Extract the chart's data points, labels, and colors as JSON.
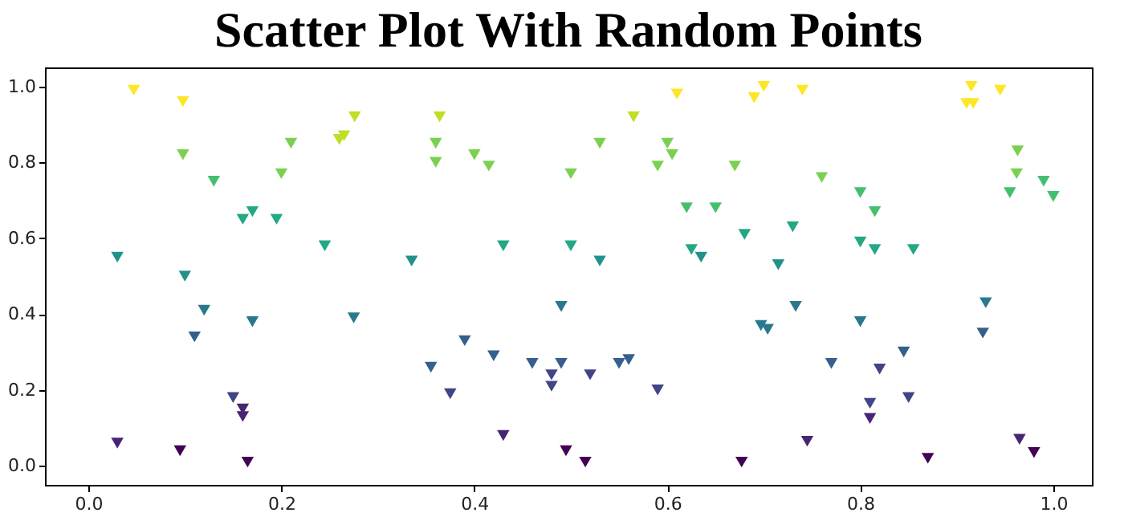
{
  "chart_data": {
    "type": "scatter",
    "title": "Scatter Plot With Random Points",
    "marker": "triangle",
    "grid": false,
    "xlim": [
      -0.045,
      1.04
    ],
    "ylim": [
      -0.05,
      1.05
    ],
    "xticks": [
      {
        "value": 0,
        "label": "0.0"
      },
      {
        "value": 0.2,
        "label": "0.2"
      },
      {
        "value": 0.4,
        "label": "0.4"
      },
      {
        "value": 0.6,
        "label": "0.6"
      },
      {
        "value": 0.8,
        "label": "0.8"
      },
      {
        "value": 1,
        "label": "1.0"
      }
    ],
    "yticks": [
      {
        "value": 0,
        "label": "0.0"
      },
      {
        "value": 0.2,
        "label": "0.2"
      },
      {
        "value": 0.4,
        "label": "0.4"
      },
      {
        "value": 0.6,
        "label": "0.6"
      },
      {
        "value": 0.8,
        "label": "0.8"
      },
      {
        "value": 1,
        "label": "1.0"
      }
    ],
    "series": [
      {
        "color": "#440154",
        "x": [
          0.095,
          0.165,
          0.495,
          0.515,
          0.677,
          0.87,
          0.98
        ],
        "values": [
          0.04,
          0.01,
          0.04,
          0.01,
          0.01,
          0.02,
          0.035
        ]
      },
      {
        "color": "#482475",
        "x": [
          0.03,
          0.16,
          0.16,
          0.43,
          0.745,
          0.81,
          0.965
        ],
        "values": [
          0.06,
          0.13,
          0.15,
          0.08,
          0.065,
          0.125,
          0.07
        ]
      },
      {
        "color": "#414487",
        "x": [
          0.15,
          0.375,
          0.48,
          0.59,
          0.81,
          0.85,
          0.48,
          0.52,
          0.82
        ],
        "values": [
          0.18,
          0.19,
          0.21,
          0.2,
          0.165,
          0.18,
          0.24,
          0.24,
          0.255
        ]
      },
      {
        "color": "#355f8d",
        "x": [
          0.355,
          0.39,
          0.42,
          0.46,
          0.49,
          0.55,
          0.56,
          0.77,
          0.845,
          0.11,
          0.927
        ],
        "values": [
          0.26,
          0.33,
          0.29,
          0.27,
          0.27,
          0.27,
          0.28,
          0.27,
          0.3,
          0.34,
          0.35
        ]
      },
      {
        "color": "#2a788e",
        "x": [
          0.12,
          0.17,
          0.275,
          0.49,
          0.697,
          0.704,
          0.733,
          0.8,
          0.93
        ],
        "values": [
          0.41,
          0.38,
          0.39,
          0.42,
          0.37,
          0.36,
          0.42,
          0.38,
          0.43
        ]
      },
      {
        "color": "#21918c",
        "x": [
          0.03,
          0.1,
          0.335,
          0.53,
          0.635,
          0.715
        ],
        "values": [
          0.55,
          0.5,
          0.54,
          0.54,
          0.55,
          0.53
        ]
      },
      {
        "color": "#22a884",
        "x": [
          0.16,
          0.17,
          0.195,
          0.245,
          0.43,
          0.5,
          0.625,
          0.68,
          0.73,
          0.8,
          0.815,
          0.855
        ],
        "values": [
          0.65,
          0.67,
          0.65,
          0.58,
          0.58,
          0.58,
          0.57,
          0.61,
          0.63,
          0.59,
          0.57,
          0.57
        ]
      },
      {
        "color": "#44bf70",
        "x": [
          0.13,
          0.62,
          0.65,
          0.815,
          0.8,
          0.955,
          1.0,
          0.99
        ],
        "values": [
          0.75,
          0.68,
          0.68,
          0.67,
          0.72,
          0.72,
          0.71,
          0.75
        ]
      },
      {
        "color": "#7ad151",
        "x": [
          0.098,
          0.2,
          0.21,
          0.36,
          0.36,
          0.4,
          0.415,
          0.5,
          0.53,
          0.6,
          0.605,
          0.59,
          0.67,
          0.76,
          0.962,
          0.963
        ],
        "values": [
          0.82,
          0.77,
          0.85,
          0.8,
          0.85,
          0.82,
          0.79,
          0.77,
          0.85,
          0.85,
          0.82,
          0.79,
          0.79,
          0.76,
          0.77,
          0.83
        ]
      },
      {
        "color": "#bddf26",
        "x": [
          0.26,
          0.265,
          0.276,
          0.364,
          0.565
        ],
        "values": [
          0.86,
          0.87,
          0.92,
          0.92,
          0.92
        ]
      },
      {
        "color": "#fde725",
        "x": [
          0.047,
          0.098,
          0.61,
          0.69,
          0.7,
          0.74,
          0.915,
          0.945,
          0.91,
          0.917
        ],
        "values": [
          0.99,
          0.96,
          0.98,
          0.97,
          1.0,
          0.99,
          1.0,
          0.99,
          0.955,
          0.955
        ]
      }
    ]
  }
}
